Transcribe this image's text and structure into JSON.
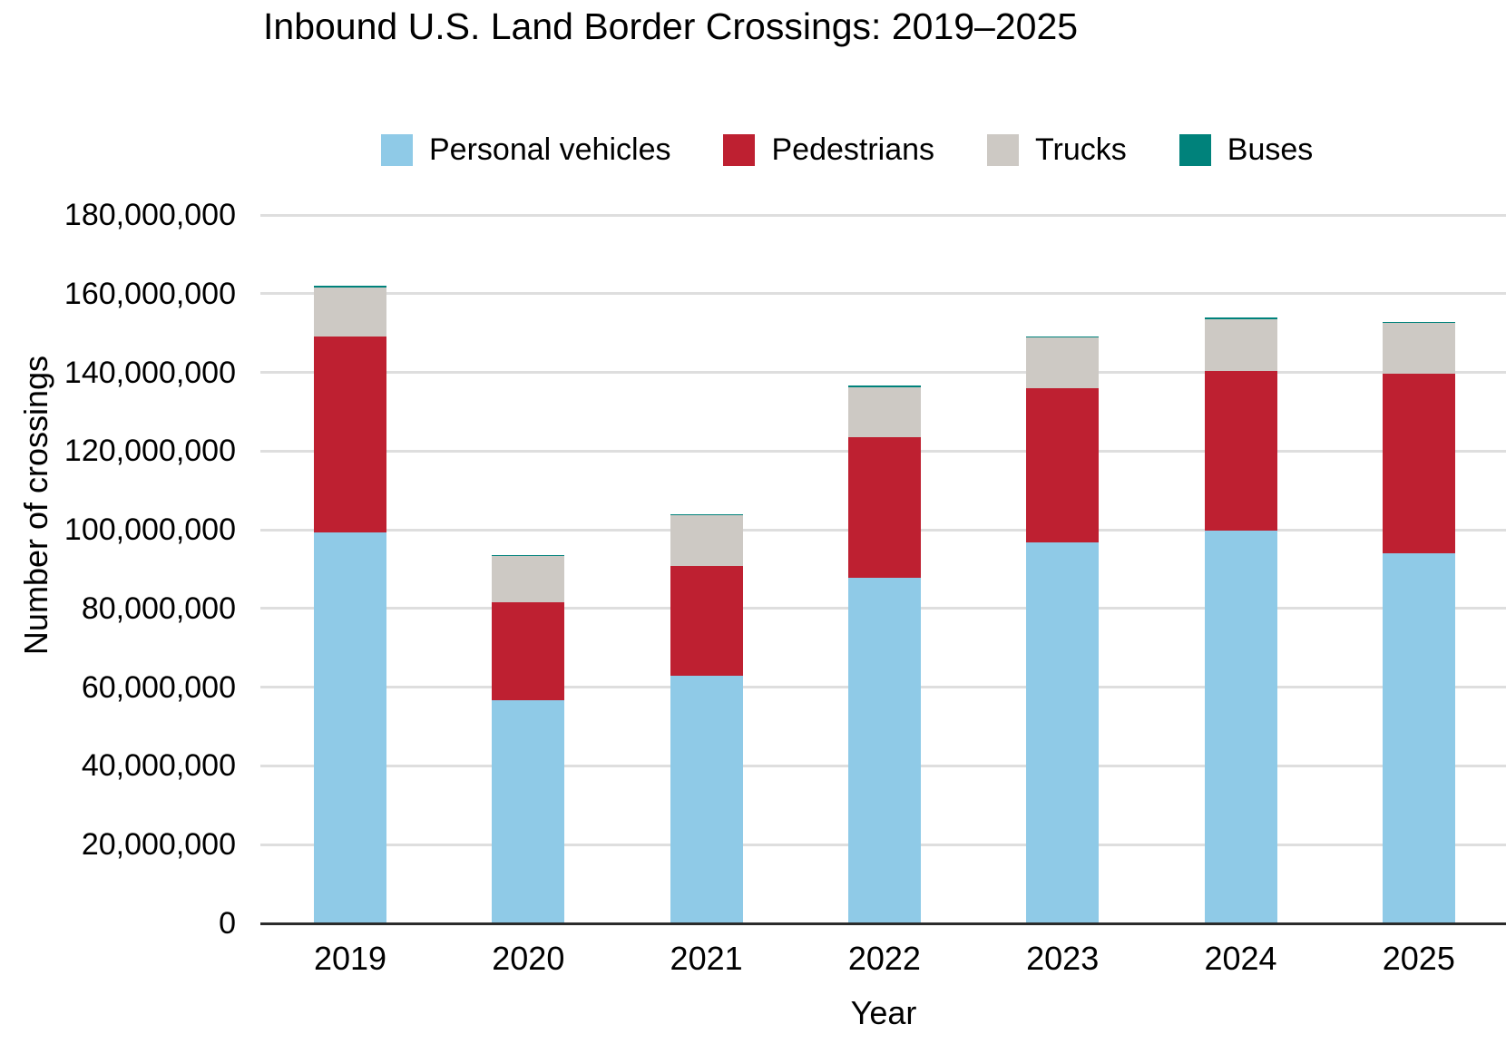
{
  "chart_data": {
    "type": "bar",
    "stacked": true,
    "title": "Inbound U.S. Land Border Crossings: 2019–2025",
    "xlabel": "Year",
    "ylabel": "Number of crossings",
    "categories": [
      "2019",
      "2020",
      "2021",
      "2022",
      "2023",
      "2024",
      "2025"
    ],
    "series": [
      {
        "name": "Personal vehicles",
        "color": "#8FCAE7",
        "values": [
          99300000,
          56700000,
          62900000,
          87800000,
          96900000,
          99700000,
          94100000
        ]
      },
      {
        "name": "Pedestrians",
        "color": "#BE2031",
        "values": [
          49900000,
          24900000,
          28000000,
          35700000,
          39100000,
          40700000,
          45600000
        ]
      },
      {
        "name": "Trucks",
        "color": "#CDC9C4",
        "values": [
          12300000,
          11700000,
          12700000,
          12800000,
          12800000,
          13100000,
          12800000
        ]
      },
      {
        "name": "Buses",
        "color": "#00827B",
        "values": [
          500000,
          300000,
          300000,
          300000,
          300000,
          400000,
          300000
        ]
      }
    ],
    "ylim": [
      0,
      180000000
    ],
    "ytick_step": 20000000,
    "ytick_labels": [
      "0",
      "20,000,000",
      "40,000,000",
      "60,000,000",
      "80,000,000",
      "100,000,000",
      "120,000,000",
      "140,000,000",
      "160,000,000",
      "180,000,000"
    ],
    "grid": "horizontal",
    "legend_position": "top"
  },
  "style": {
    "gridline_color": "#DEDEDE",
    "axis_line_color": "#2B2B2B",
    "text_color": "#000000",
    "background": "#FFFFFF"
  }
}
